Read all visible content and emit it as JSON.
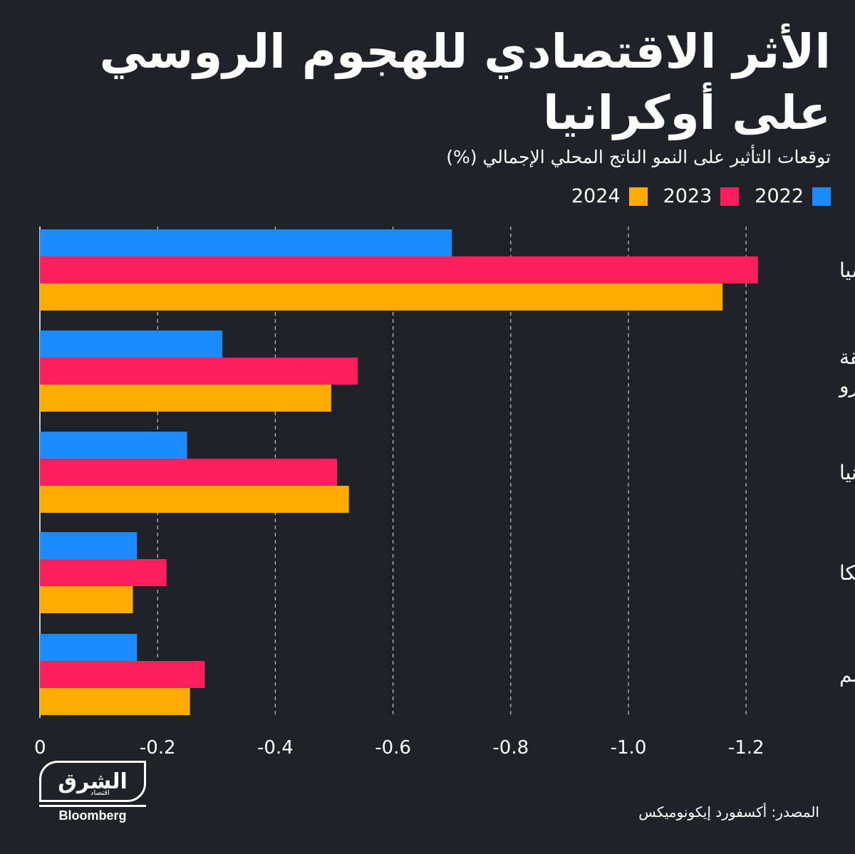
{
  "title": "الأثر الاقتصادي للهجوم الروسي على أوكرانيا",
  "subtitle": "توقعات التأثير على النمو الناتج المحلي الإجمالي (%)",
  "legend": [
    {
      "label": "2022",
      "color": "#1a8cff"
    },
    {
      "label": "2023",
      "color": "#ff1f5a"
    },
    {
      "label": "2024",
      "color": "#ffab00"
    }
  ],
  "chart_data": {
    "type": "bar",
    "orientation": "horizontal",
    "categories": [
      "روسيا",
      "منطقة اليورو",
      "بريطانيا",
      "أمريكا",
      "العالم"
    ],
    "series": [
      {
        "name": "2022",
        "color": "#1a8cff",
        "values": [
          -0.7,
          -0.31,
          -0.25,
          -0.165,
          -0.165
        ]
      },
      {
        "name": "2023",
        "color": "#ff1f5a",
        "values": [
          -1.22,
          -0.54,
          -0.505,
          -0.215,
          -0.28
        ]
      },
      {
        "name": "2024",
        "color": "#ffab00",
        "values": [
          -1.16,
          -0.495,
          -0.525,
          -0.158,
          -0.255
        ]
      }
    ],
    "xticks": [
      "0",
      "-0.2",
      "-0.4",
      "-0.6",
      "-0.8",
      "-1.0",
      "-1.2"
    ],
    "xtick_values": [
      0,
      -0.2,
      -0.4,
      -0.6,
      -0.8,
      -1.0,
      -1.2
    ],
    "xlim": [
      0,
      -1.2
    ],
    "grid": true,
    "legend_position": "top-right"
  },
  "logo": {
    "brand": "الشرق",
    "sub": "اقتصاد",
    "partner": "Bloomberg"
  },
  "source": "المصدر: أكسفورد إيكونوميكس"
}
